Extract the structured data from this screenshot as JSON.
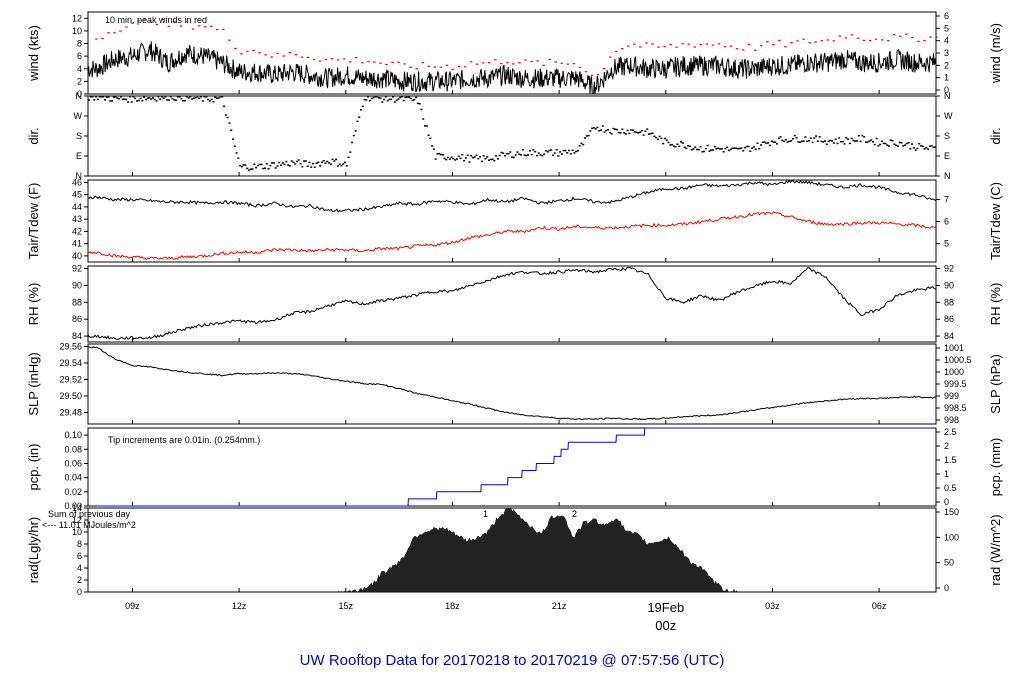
{
  "title": "UW Rooftop Data for 20170218  to  20170219 @ 07:57:56  (UTC)",
  "colors": {
    "frame": "#000000",
    "red": "#ff0000",
    "blue": "#0000ff",
    "purple": "#9900cc",
    "title": "#0000cc"
  },
  "x_axis": {
    "ticks": [
      "09z",
      "12z",
      "15z",
      "18z",
      "21z",
      "03z",
      "06z"
    ],
    "date_label": "19Feb",
    "date_hour": "00z"
  },
  "chart_data": [
    {
      "type": "line",
      "ylabel": "wind (kts)",
      "ylabel_right": "wind (m/s)",
      "ylim": [
        0,
        13
      ],
      "yticks": [
        0,
        2,
        4,
        6,
        8,
        10,
        12
      ],
      "yticks_right": [
        0,
        1,
        2,
        3,
        4,
        5,
        6
      ],
      "annotation": "10 min. peak winds in red",
      "series": [
        {
          "color": "#000000",
          "x": [
            8,
            8.5,
            9,
            9.5,
            10,
            10.5,
            11,
            11.5,
            12,
            12.5,
            13,
            13.5,
            14,
            14.5,
            15,
            15.5,
            16,
            16.5,
            17,
            17.5,
            18,
            18.5,
            19,
            19.5,
            20,
            20.5,
            21,
            21.5,
            22,
            22.5,
            23,
            23.5,
            24,
            24.5,
            25,
            25.5,
            26,
            26.5,
            27,
            27.5,
            28,
            28.5,
            29,
            29.5,
            30,
            30.5,
            31,
            31.5
          ],
          "values": [
            4,
            5.5,
            6,
            7,
            5,
            6.5,
            6,
            5,
            3.5,
            3.5,
            3,
            3.5,
            3,
            2.5,
            3,
            2.5,
            2.5,
            2,
            2,
            2,
            2,
            2.5,
            2.5,
            3,
            2.5,
            2.5,
            2.5,
            2.5,
            1,
            4,
            4.5,
            4,
            4,
            4.5,
            4.5,
            4.5,
            4,
            4,
            4.5,
            4.5,
            5,
            5,
            5.5,
            5,
            5,
            5.5,
            5,
            5
          ]
        },
        {
          "color": "#ff0000",
          "x": [
            8,
            8.5,
            9,
            9.5,
            10,
            10.5,
            11,
            11.5,
            12,
            12.5,
            13,
            13.5,
            14,
            14.5,
            15,
            15.5,
            16,
            16.5,
            17,
            17.5,
            18,
            18.5,
            19,
            19.5,
            20,
            20.5,
            21,
            21.5,
            22,
            22.5,
            23,
            23.5,
            24,
            24.5,
            25,
            25.5,
            26,
            26.5,
            27,
            27.5,
            28,
            28.5,
            29,
            29.5,
            30,
            30.5,
            31,
            31.5
          ],
          "values": [
            9,
            10.5,
            11,
            12,
            11,
            11,
            11,
            10,
            7,
            7,
            6,
            6.5,
            6,
            5.5,
            5.5,
            5.5,
            5,
            4.5,
            4.5,
            4.5,
            4.5,
            5,
            5,
            5.5,
            5,
            5,
            5,
            5,
            2.5,
            7,
            8,
            7.5,
            7.5,
            8,
            8,
            8,
            7.5,
            7.5,
            8,
            8,
            8.5,
            8.5,
            9.5,
            9,
            9,
            9,
            9,
            9
          ]
        }
      ]
    },
    {
      "type": "scatter",
      "ylabel": "dir.",
      "ylabel_right": "dir.",
      "ylim": [
        0,
        4
      ],
      "yticks": [
        "N",
        "E",
        "S",
        "W",
        "N"
      ],
      "yticks_right": [
        "N",
        "E",
        "S",
        "W",
        "N"
      ],
      "series": [
        {
          "color": "#000000",
          "x": [
            8,
            8.5,
            9,
            9.5,
            10,
            10.5,
            11,
            11.5,
            12,
            12.5,
            13,
            13.5,
            14,
            14.5,
            15,
            15.5,
            16,
            16.5,
            17,
            17.5,
            18,
            18.5,
            19,
            19.5,
            20,
            20.5,
            21,
            21.5,
            22,
            22.5,
            23,
            23.5,
            24,
            24.5,
            25,
            25.5,
            26,
            26.5,
            27,
            27.5,
            28,
            28.5,
            29,
            29.5,
            30,
            30.5,
            31,
            31.5
          ],
          "values": [
            4,
            3.9,
            3.9,
            3.95,
            4,
            3.95,
            3.9,
            3.9,
            0.5,
            0.5,
            0.6,
            0.7,
            0.6,
            0.8,
            0.6,
            4,
            3.9,
            3.9,
            3.8,
            1,
            1,
            0.9,
            0.9,
            1.1,
            1.2,
            1.2,
            1.2,
            1.3,
            2.5,
            2.3,
            2.3,
            2.2,
            1.7,
            1.6,
            1.4,
            1.4,
            1.3,
            1.5,
            1.8,
            1.9,
            1.9,
            1.8,
            1.8,
            1.9,
            1.7,
            1.7,
            1.5,
            1.4
          ]
        }
      ]
    },
    {
      "type": "line",
      "ylabel": "Tair/Tdew (F)",
      "ylabel_right": "Tair/Tdew (C)",
      "ylim": [
        39.5,
        46.2
      ],
      "yticks": [
        40,
        41,
        42,
        43,
        44,
        45,
        46
      ],
      "yticks_right": [
        5,
        6,
        7
      ],
      "series": [
        {
          "color": "#000000",
          "x": [
            8,
            8.5,
            9,
            9.5,
            10,
            10.5,
            11,
            11.5,
            12,
            12.5,
            13,
            13.5,
            14,
            14.5,
            15,
            15.5,
            16,
            16.5,
            17,
            17.5,
            18,
            18.5,
            19,
            19.5,
            20,
            20.5,
            21,
            21.5,
            22,
            22.5,
            23,
            23.5,
            24,
            24.5,
            25,
            25.5,
            26,
            26.5,
            27,
            27.5,
            28,
            28.5,
            29,
            29.5,
            30,
            30.5,
            31,
            31.5
          ],
          "values": [
            44.8,
            44.6,
            44.6,
            44.5,
            44.4,
            44.4,
            44.3,
            44.4,
            44.3,
            44.1,
            44.3,
            44.0,
            44.1,
            43.7,
            43.7,
            43.8,
            44.0,
            44.3,
            44.2,
            44.5,
            44.4,
            44.2,
            44.6,
            44.4,
            44.7,
            44.3,
            44.5,
            44.7,
            44.4,
            44.4,
            44.8,
            45.2,
            45.5,
            45.5,
            45.8,
            45.7,
            45.8,
            46.0,
            45.8,
            46.1,
            46.0,
            45.8,
            45.6,
            45.8,
            45.6,
            45.2,
            45.0,
            44.6
          ]
        },
        {
          "color": "#ff0000",
          "x": [
            8,
            8.5,
            9,
            9.5,
            10,
            10.5,
            11,
            11.5,
            12,
            12.5,
            13,
            13.5,
            14,
            14.5,
            15,
            15.5,
            16,
            16.5,
            17,
            17.5,
            18,
            18.5,
            19,
            19.5,
            20,
            20.5,
            21,
            21.5,
            22,
            22.5,
            23,
            23.5,
            24,
            24.5,
            25,
            25.5,
            26,
            26.5,
            27,
            27.5,
            28,
            28.5,
            29,
            29.5,
            30,
            30.5,
            31,
            31.5
          ],
          "values": [
            40.3,
            40.0,
            39.9,
            39.8,
            39.8,
            39.9,
            40.0,
            40.2,
            40.3,
            40.3,
            40.5,
            40.5,
            40.4,
            40.5,
            40.5,
            40.4,
            40.6,
            40.6,
            40.8,
            40.9,
            41.1,
            41.5,
            41.7,
            42.0,
            42.0,
            42.3,
            42.2,
            42.4,
            42.3,
            42.3,
            42.4,
            42.5,
            42.5,
            42.6,
            42.8,
            43.0,
            43.2,
            43.4,
            43.5,
            43.2,
            42.8,
            42.6,
            42.6,
            42.7,
            42.7,
            42.6,
            42.5,
            42.3
          ]
        }
      ]
    },
    {
      "type": "line",
      "ylabel": "RH (%)",
      "ylabel_right": "RH (%)",
      "ylim": [
        83.3,
        92.3
      ],
      "yticks": [
        84,
        86,
        88,
        90,
        92
      ],
      "yticks_right": [
        84,
        86,
        88,
        90,
        92
      ],
      "series": [
        {
          "color": "#000000",
          "x": [
            8,
            8.5,
            9,
            9.5,
            10,
            10.5,
            11,
            11.5,
            12,
            12.5,
            13,
            13.5,
            14,
            14.5,
            15,
            15.5,
            16,
            16.5,
            17,
            17.5,
            18,
            18.5,
            19,
            19.5,
            20,
            20.5,
            21,
            21.5,
            22,
            22.5,
            23,
            23.5,
            24,
            24.5,
            25,
            25.5,
            26,
            26.5,
            27,
            27.5,
            28,
            28.5,
            29,
            29.5,
            30,
            30.5,
            31,
            31.5
          ],
          "values": [
            84.0,
            83.7,
            83.8,
            83.8,
            84.3,
            84.9,
            85.3,
            85.6,
            85.8,
            85.6,
            85.9,
            86.7,
            86.9,
            87.6,
            88.1,
            87.8,
            88.2,
            88.5,
            88.9,
            89.3,
            89.3,
            90.0,
            90.6,
            91.3,
            91.6,
            91.4,
            91.6,
            91.8,
            91.6,
            91.9,
            92.0,
            91.3,
            88.5,
            88.0,
            88.8,
            88.2,
            89.2,
            89.9,
            90.5,
            90.2,
            92.0,
            91.0,
            88.5,
            86.5,
            87.2,
            88.8,
            89.4,
            89.7
          ]
        }
      ]
    },
    {
      "type": "line",
      "ylabel": "SLP (inHg)",
      "ylabel_right": "SLP (hPa)",
      "ylim": [
        29.466,
        29.563
      ],
      "yticks": [
        29.48,
        29.5,
        29.52,
        29.54,
        29.56
      ],
      "yticks_right": [
        "998",
        "998.5",
        "999",
        "999.5",
        "1000",
        "1000.5",
        "1001"
      ],
      "series": [
        {
          "color": "#000000",
          "x": [
            8,
            8.5,
            9,
            9.5,
            10,
            10.5,
            11,
            11.5,
            12,
            12.5,
            13,
            13.5,
            14,
            14.5,
            15,
            15.5,
            16,
            16.5,
            17,
            17.5,
            18,
            18.5,
            19,
            19.5,
            20,
            20.5,
            21,
            21.5,
            22,
            22.5,
            23,
            23.5,
            24,
            24.5,
            25,
            25.5,
            26,
            26.5,
            27,
            27.5,
            28,
            28.5,
            29,
            29.5,
            30,
            30.5,
            31,
            31.5
          ],
          "values": [
            29.559,
            29.545,
            29.537,
            29.535,
            29.532,
            29.529,
            29.527,
            29.525,
            29.527,
            29.527,
            29.528,
            29.527,
            29.525,
            29.521,
            29.518,
            29.515,
            29.514,
            29.509,
            29.503,
            29.499,
            29.494,
            29.49,
            29.485,
            29.48,
            29.477,
            29.475,
            29.473,
            29.472,
            29.472,
            29.473,
            29.472,
            29.472,
            29.473,
            29.475,
            29.476,
            29.477,
            29.48,
            29.483,
            29.486,
            29.489,
            29.492,
            29.494,
            29.496,
            29.497,
            29.497,
            29.498,
            29.499,
            29.498
          ]
        }
      ]
    },
    {
      "type": "line",
      "ylabel": "pcp. (in)",
      "ylabel_right": "pcp. (mm)",
      "ylim": [
        0,
        0.11
      ],
      "yticks": [
        0.0,
        0.02,
        0.04,
        0.06,
        0.08,
        0.1
      ],
      "yticks_right": [
        "0",
        "0.5",
        "1",
        "1.5",
        "2",
        "2.5"
      ],
      "annotation": "Tip increments are 0.01in. (0.254mm.)",
      "series": [
        {
          "color": "#0000ff",
          "x": [
            8,
            16.75,
            16.76,
            17.55,
            17.56,
            18.8,
            18.81,
            19.55,
            19.56,
            19.95,
            19.96,
            20.35,
            20.36,
            20.85,
            20.86,
            21.05,
            21.06,
            21.25,
            21.26,
            22.6,
            22.61,
            23.4,
            23.41,
            31.5
          ],
          "values": [
            0,
            0,
            0.01,
            0.01,
            0.02,
            0.02,
            0.03,
            0.03,
            0.04,
            0.04,
            0.05,
            0.05,
            0.06,
            0.06,
            0.07,
            0.07,
            0.08,
            0.08,
            0.09,
            0.09,
            0.1,
            0.1,
            0.11,
            0.11
          ]
        }
      ]
    },
    {
      "type": "area",
      "ylabel": "rad(Lgly/hr)",
      "ylabel_right": "rad (W/m^2)",
      "ylim": [
        0,
        14
      ],
      "yticks": [
        0,
        2,
        4,
        6,
        8,
        10,
        12,
        14
      ],
      "yticks_right": [
        0,
        50,
        100,
        150
      ],
      "annotations": [
        "Sum of previous day",
        "<--- 11.01 MJoules/m^2",
        "1",
        "2"
      ],
      "series": [
        {
          "color": "#000000",
          "x": [
            14.8,
            15.2,
            15.5,
            15.8,
            16.0,
            16.3,
            16.6,
            16.9,
            17.2,
            17.5,
            17.8,
            18.1,
            18.4,
            18.7,
            19.0,
            19.3,
            19.6,
            19.9,
            20.2,
            20.5,
            20.8,
            21.1,
            21.4,
            21.7,
            22.0,
            22.3,
            22.6,
            22.9,
            23.2,
            23.5,
            23.8,
            24.1,
            24.4,
            24.7,
            25.0,
            25.3,
            25.6,
            26.0
          ],
          "values": [
            0,
            0.1,
            0.6,
            1.5,
            3.0,
            4.2,
            5.5,
            9.0,
            10.0,
            10.5,
            10.5,
            9.5,
            8.5,
            9.0,
            10.0,
            12.5,
            14.0,
            12.5,
            11.0,
            9.5,
            12.5,
            13.0,
            9.0,
            11.5,
            12.0,
            11.0,
            12.5,
            10.0,
            9.5,
            8.0,
            8.5,
            9.0,
            7.0,
            5.0,
            4.0,
            2.0,
            0.5,
            0
          ]
        }
      ]
    }
  ]
}
